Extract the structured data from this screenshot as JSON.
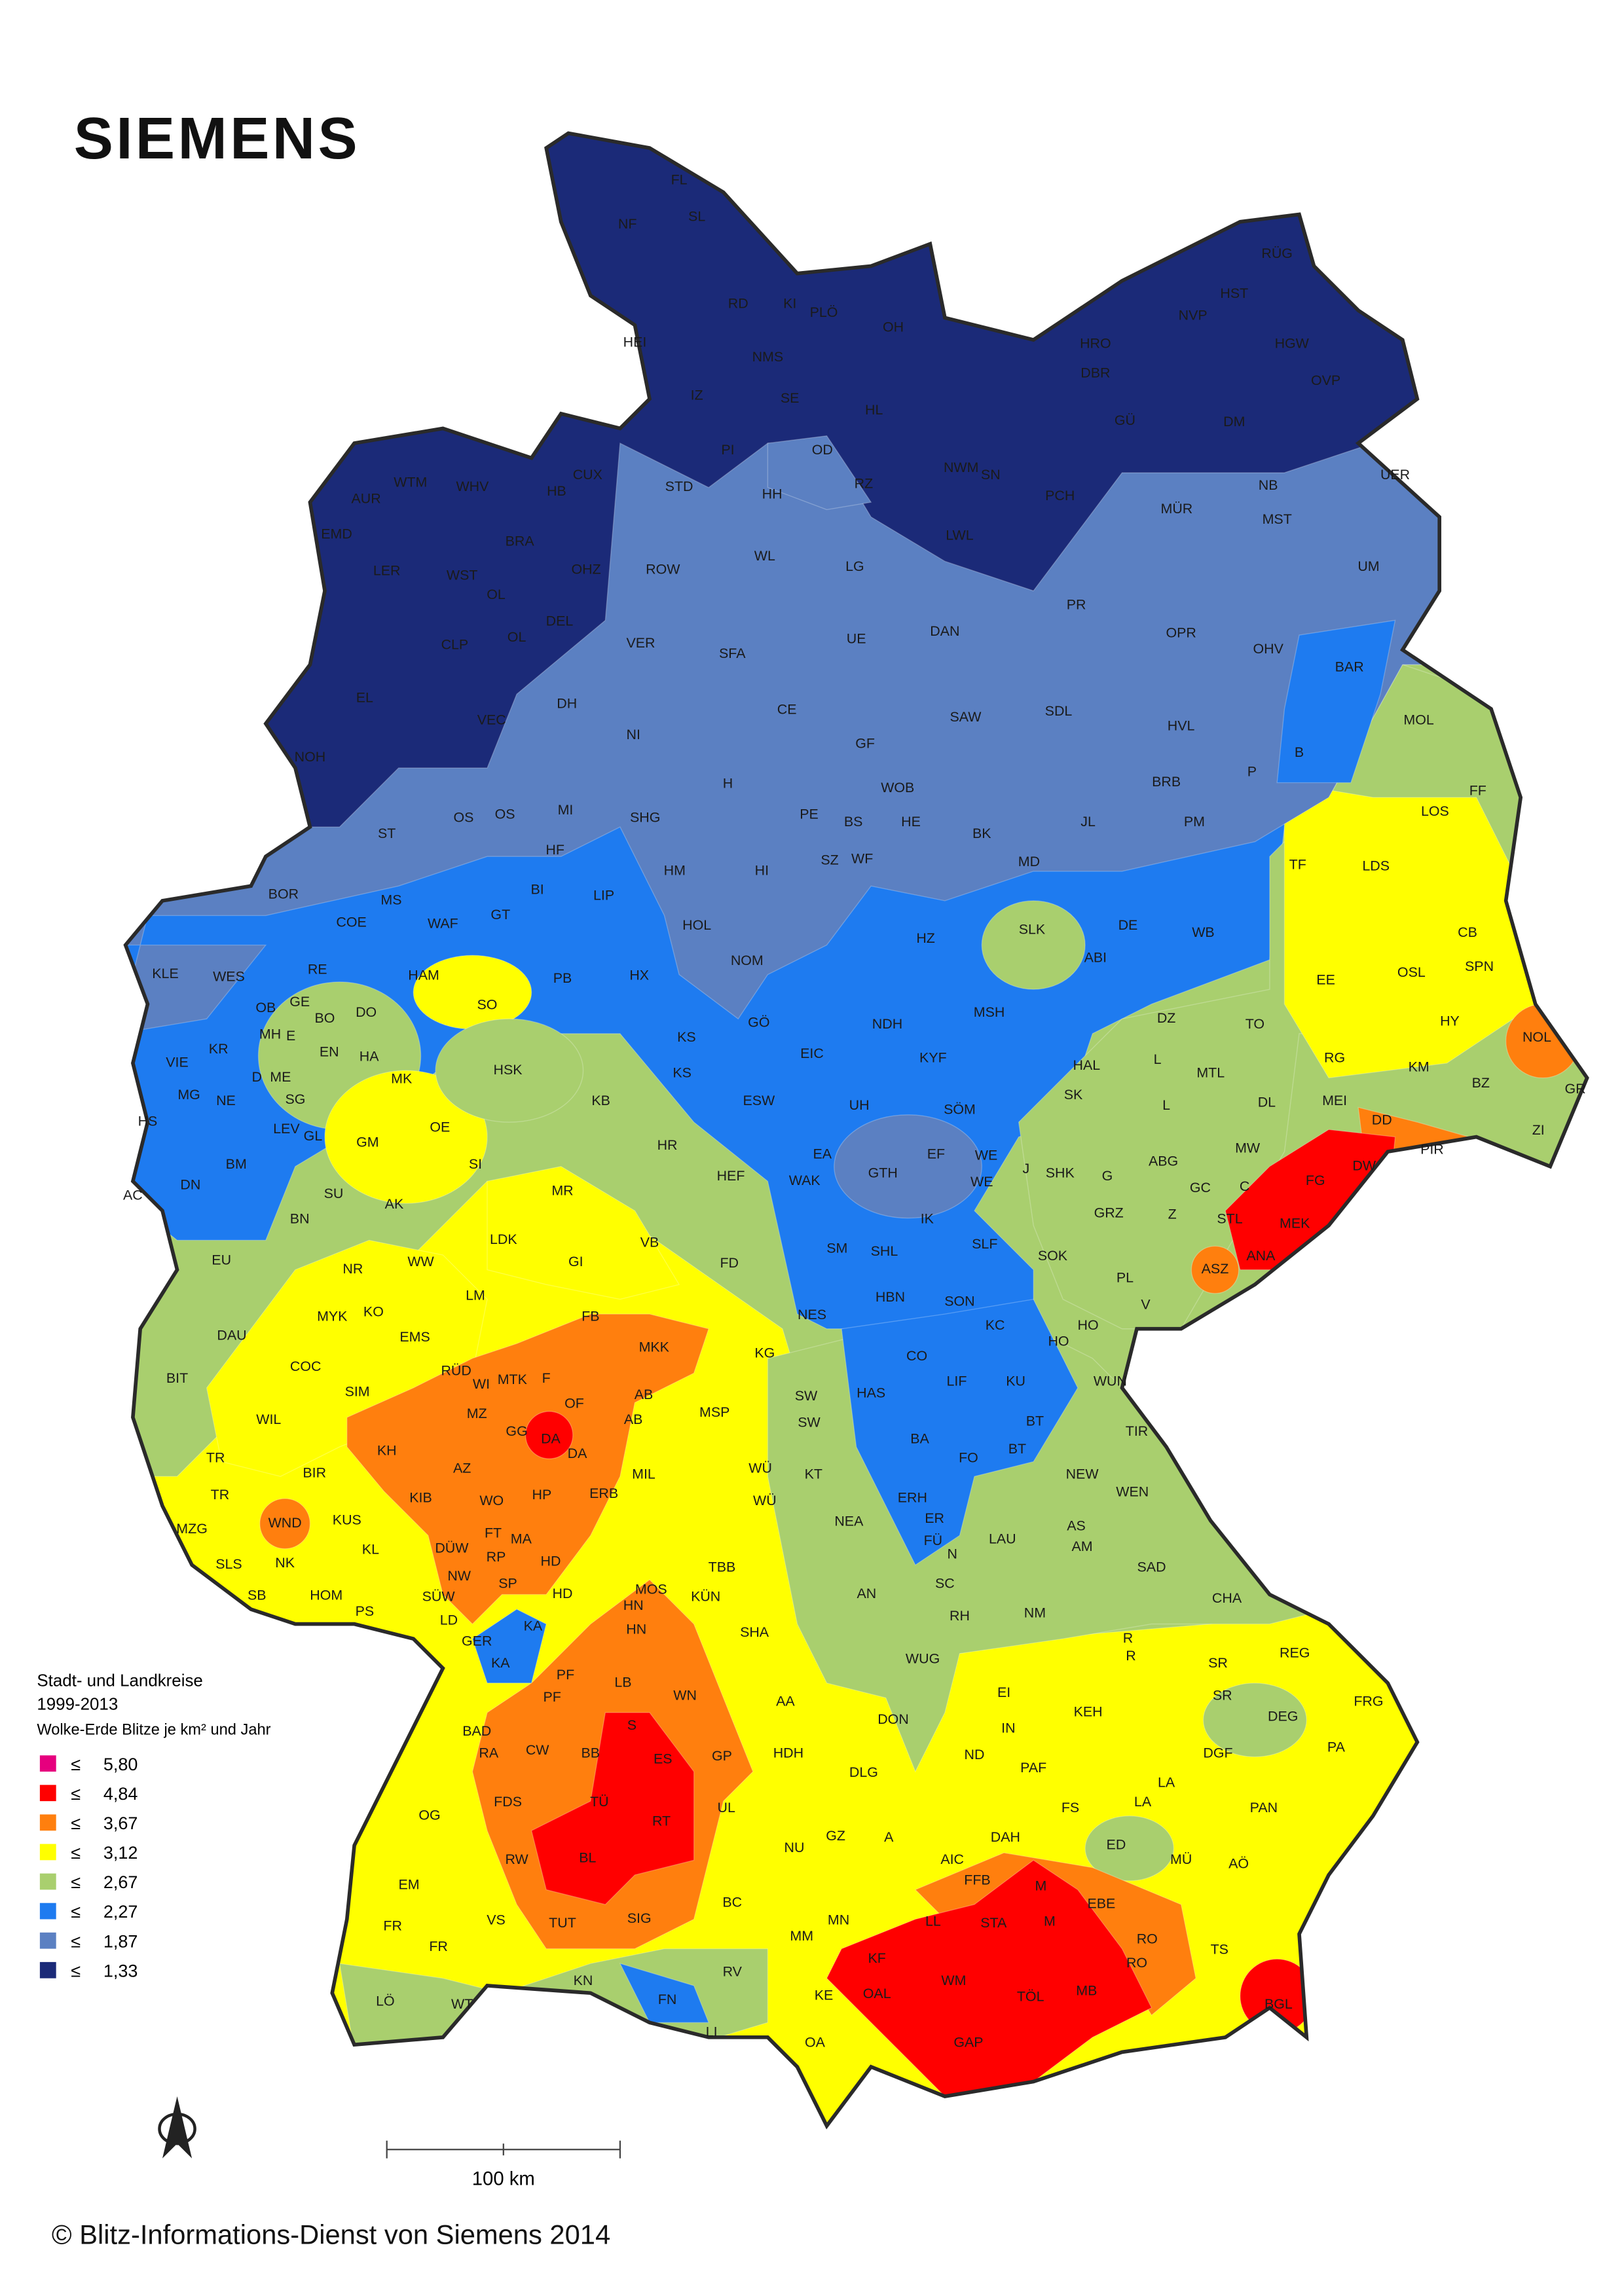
{
  "header": {
    "logo": "SIEMENS"
  },
  "legend": {
    "title": "Stadt- und Landkreise",
    "period": "1999-2013",
    "unit": "Wolke-Erde Blitze je km² und Jahr",
    "items": [
      {
        "symbol": "≤",
        "label": "5,80",
        "color": "#e6007e"
      },
      {
        "symbol": "≤",
        "label": "4,84",
        "color": "#ff0000"
      },
      {
        "symbol": "≤",
        "label": "3,67",
        "color": "#ff7f0e"
      },
      {
        "symbol": "≤",
        "label": "3,12",
        "color": "#ffff00"
      },
      {
        "symbol": "≤",
        "label": "2,67",
        "color": "#a9cf6e"
      },
      {
        "symbol": "≤",
        "label": "2,27",
        "color": "#1e7bf0"
      },
      {
        "symbol": "≤",
        "label": "1,87",
        "color": "#5b80c2"
      },
      {
        "symbol": "≤",
        "label": "1,33",
        "color": "#1b2a78"
      }
    ]
  },
  "scale": {
    "label": "100 km"
  },
  "footer": {
    "copyright": "© Blitz-Informations-Dienst von Siemens 2014"
  },
  "district_labels": [
    "FL",
    "NF",
    "SL",
    "HEI",
    "RD",
    "KI",
    "PLÖ",
    "OH",
    "NMS",
    "IZ",
    "SE",
    "PI",
    "HL",
    "OD",
    "RZ",
    "HH",
    "STD",
    "CUX",
    "WTM",
    "WHV",
    "AUR",
    "EMD",
    "BRA",
    "HB",
    "OHZ",
    "LER",
    "WST",
    "OL",
    "DEL",
    "OL",
    "CLP",
    "EL",
    "VEC",
    "NOH",
    "ROW",
    "WL",
    "LG",
    "VER",
    "SFA",
    "UE",
    "DAN",
    "CE",
    "DH",
    "NI",
    "GF",
    "H",
    "WOB",
    "PE",
    "BS",
    "HE",
    "HI",
    "SZ",
    "WF",
    "ST",
    "OS",
    "OS",
    "MI",
    "SHG",
    "HM",
    "HOL",
    "NOM",
    "GÖ",
    "BOR",
    "MS",
    "COE",
    "WAF",
    "GT",
    "BI",
    "HF",
    "LIP",
    "PB",
    "HX",
    "KLE",
    "WES",
    "RE",
    "HAM",
    "SO",
    "GE",
    "OB",
    "BO",
    "DO",
    "MH",
    "E",
    "KR",
    "D",
    "ME",
    "EN",
    "HA",
    "VIE",
    "MG",
    "NE",
    "SG",
    "MK",
    "HSK",
    "HS",
    "LEV",
    "GL",
    "GM",
    "OE",
    "SI",
    "BM",
    "DN",
    "SU",
    "AC",
    "BN",
    "EU",
    "KS",
    "KS",
    "KB",
    "ESW",
    "HR",
    "HEF",
    "MR",
    "LDK",
    "GI",
    "VB",
    "FD",
    "WW",
    "NR",
    "AK",
    "MYK",
    "KO",
    "LM",
    "FB",
    "MKK",
    "DAU",
    "COC",
    "EMS",
    "RÜD",
    "WI",
    "MTK",
    "F",
    "OF",
    "AB",
    "BIT",
    "SIM",
    "MZ",
    "GG",
    "DA",
    "DA",
    "AB",
    "WIL",
    "KH",
    "AZ",
    "TR",
    "BIR",
    "KIB",
    "WO",
    "HP",
    "MIL",
    "ERB",
    "TR",
    "WND",
    "MZG",
    "KUS",
    "KL",
    "DÜW",
    "FT",
    "MA",
    "RP",
    "SLS",
    "NK",
    "HD",
    "NW",
    "SP",
    "SB",
    "HOM",
    "PS",
    "SÜW",
    "LD",
    "HD",
    "MOS",
    "GER",
    "KA",
    "KA",
    "PF",
    "PF",
    "HN",
    "HN",
    "LB",
    "WN",
    "BAD",
    "RA",
    "S",
    "CW",
    "BB",
    "ES",
    "GP",
    "FDS",
    "TÜ",
    "RT",
    "BL",
    "OG",
    "RW",
    "EM",
    "VS",
    "TUT",
    "SIG",
    "BC",
    "UL",
    "FR",
    "FR",
    "LÖ",
    "WT",
    "KN",
    "FN",
    "RV",
    "LI",
    "TBB",
    "KÜN",
    "SHA",
    "AA",
    "HDH",
    "WÜ",
    "WÜ",
    "KT",
    "NEA",
    "MSP",
    "KG",
    "SW",
    "SW",
    "AN",
    "RH",
    "WUG",
    "DON",
    "DLG",
    "GZ",
    "A",
    "AIC",
    "ND",
    "EI",
    "IN",
    "NU",
    "MN",
    "MM",
    "KF",
    "KE",
    "OAL",
    "OA",
    "LL",
    "FFB",
    "STA",
    "M",
    "M",
    "WM",
    "TÖL",
    "MB",
    "GAP",
    "EBE",
    "RO",
    "RO",
    "TS",
    "BGL",
    "DAH",
    "PAF",
    "FS",
    "KEH",
    "LA",
    "LA",
    "ED",
    "MÜ",
    "AÖ",
    "PAN",
    "DGF",
    "DEG",
    "SR",
    "SR",
    "R",
    "R",
    "REG",
    "FRG",
    "PA",
    "CHA",
    "SAD",
    "NM",
    "AM",
    "AS",
    "LAU",
    "N",
    "FÜ",
    "SC",
    "ER",
    "ERH",
    "FO",
    "BA",
    "BT",
    "BT",
    "NEW",
    "WEN",
    "TIR",
    "WUN",
    "HO",
    "HO",
    "KU",
    "LIF",
    "KC",
    "CO",
    "SON",
    "HBN",
    "HAS",
    "NES",
    "SM",
    "SHL",
    "SLF",
    "IK",
    "SOK",
    "GRZ",
    "G",
    "J",
    "SHK",
    "WE",
    "WE",
    "EF",
    "GTH",
    "WAK",
    "EA",
    "UH",
    "SÖM",
    "KYF",
    "NDH",
    "EIC",
    "SK",
    "MSH",
    "HAL",
    "HZ",
    "ABI",
    "DE",
    "SLK",
    "WB",
    "MD",
    "BK",
    "JL",
    "SAW",
    "SDL",
    "HVL",
    "BRB",
    "PM",
    "P",
    "B",
    "BAR",
    "OHV",
    "OPR",
    "PR",
    "UM",
    "UER",
    "MÜR",
    "NB",
    "MST",
    "NWM",
    "SN",
    "PCH",
    "LWL",
    "HRO",
    "DBR",
    "GÜ",
    "DM",
    "NVP",
    "HGW",
    "OVP",
    "HST",
    "RÜG",
    "MOL",
    "FF",
    "LOS",
    "TF",
    "LDS",
    "CB",
    "SPN",
    "EE",
    "OSL",
    "DZ",
    "TO",
    "L",
    "MTL",
    "L",
    "DL",
    "HY",
    "NOL",
    "RG",
    "KM",
    "BZ",
    "GR",
    "MEI",
    "DD",
    "PIR",
    "ZI",
    "MW",
    "ABG",
    "GC",
    "C",
    "FG",
    "DW",
    "MEK",
    "Z",
    "STL",
    "ASZ",
    "ANA",
    "PL",
    "V"
  ]
}
